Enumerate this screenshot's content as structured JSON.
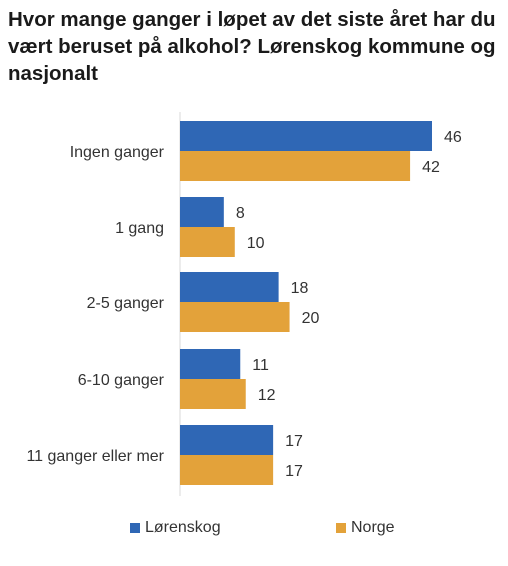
{
  "chart_data": {
    "type": "bar",
    "orientation": "horizontal",
    "title": "Hvor mange ganger i løpet av det siste året har du vært beruset på alkohol? Lørenskog kommune og nasjonalt",
    "categories": [
      "Ingen ganger",
      "1 gang",
      "2-5 ganger",
      "6-10 ganger",
      "11 ganger eller mer"
    ],
    "series": [
      {
        "name": "Lørenskog",
        "color": "#2f67b5",
        "values": [
          46,
          8,
          18,
          11,
          17
        ]
      },
      {
        "name": "Norge",
        "color": "#e3a23a",
        "values": [
          42,
          10,
          20,
          12,
          17
        ]
      }
    ],
    "xlim": [
      0,
      46
    ],
    "grid": false,
    "legend_position": "bottom"
  }
}
